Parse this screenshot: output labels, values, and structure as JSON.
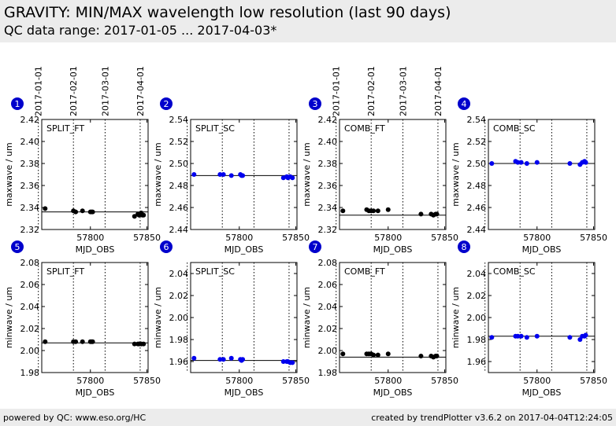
{
  "header": {
    "title": "GRAVITY: MIN/MAX wavelength low resolution (last 90 days)",
    "subtitle": "QC data range: 2017-01-05 ... 2017-04-03*"
  },
  "footer": {
    "left": "powered by QC: www.eso.org/HC",
    "right": "created by trendPlotter v3.6.2 on 2017-04-04T12:24:05"
  },
  "colors": {
    "black_series": "#000000",
    "blue_series": "#0000ee",
    "badge": "#0000cc",
    "header_bg": "#ececec"
  },
  "date_axis": {
    "labels": [
      "2017-01-01",
      "2017-02-01",
      "2017-03-01",
      "2017-04-01"
    ],
    "mjd": [
      57754,
      57785,
      57813,
      57844
    ]
  },
  "chart_data": [
    {
      "type": "scatter",
      "badge": "1",
      "label": "SPLIT_FT",
      "color": "black",
      "xlabel": "MJD_OBS",
      "ylabel": "maxwave / um",
      "xlim": [
        57757,
        57851
      ],
      "ylim": [
        2.32,
        2.42
      ],
      "yticks": [
        "2.32",
        "2.34",
        "2.36",
        "2.38",
        "2.40",
        "2.42"
      ],
      "xticks": [
        57800,
        57850
      ],
      "ref": 2.336,
      "show_dates": true,
      "points": [
        [
          57760,
          2.339
        ],
        [
          57785,
          2.337
        ],
        [
          57787,
          2.336
        ],
        [
          57793,
          2.337
        ],
        [
          57800,
          2.336
        ],
        [
          57801,
          2.336
        ],
        [
          57802,
          2.336
        ],
        [
          57839,
          2.332
        ],
        [
          57842,
          2.334
        ],
        [
          57843,
          2.333
        ],
        [
          57845,
          2.335
        ],
        [
          57846,
          2.333
        ],
        [
          57847,
          2.333
        ]
      ]
    },
    {
      "type": "scatter",
      "badge": "2",
      "label": "SPLIT_SC",
      "color": "blue",
      "xlabel": "MJD_OBS",
      "ylabel": "maxwave / um",
      "xlim": [
        57757,
        57851
      ],
      "ylim": [
        2.44,
        2.54
      ],
      "yticks": [
        "2.44",
        "2.46",
        "2.48",
        "2.50",
        "2.52",
        "2.54"
      ],
      "xticks": [
        57800,
        57850
      ],
      "ref": 2.489,
      "show_dates": false,
      "points": [
        [
          57760,
          2.49
        ],
        [
          57783,
          2.49
        ],
        [
          57786,
          2.49
        ],
        [
          57793,
          2.489
        ],
        [
          57801,
          2.49
        ],
        [
          57802,
          2.489
        ],
        [
          57803,
          2.489
        ],
        [
          57839,
          2.487
        ],
        [
          57842,
          2.488
        ],
        [
          57843,
          2.487
        ],
        [
          57845,
          2.488
        ],
        [
          57847,
          2.487
        ]
      ]
    },
    {
      "type": "scatter",
      "badge": "3",
      "label": "COMB_FT",
      "color": "black",
      "xlabel": "MJD_OBS",
      "ylabel": "maxwave / um",
      "xlim": [
        57757,
        57851
      ],
      "ylim": [
        2.32,
        2.42
      ],
      "yticks": [
        "2.32",
        "2.34",
        "2.36",
        "2.38",
        "2.40",
        "2.42"
      ],
      "xticks": [
        57800,
        57850
      ],
      "ref": 2.333,
      "show_dates": true,
      "points": [
        [
          57760,
          2.337
        ],
        [
          57781,
          2.338
        ],
        [
          57783,
          2.337
        ],
        [
          57785,
          2.337
        ],
        [
          57787,
          2.337
        ],
        [
          57791,
          2.337
        ],
        [
          57800,
          2.338
        ],
        [
          57829,
          2.334
        ],
        [
          57838,
          2.334
        ],
        [
          57840,
          2.333
        ],
        [
          57842,
          2.334
        ],
        [
          57843,
          2.334
        ]
      ]
    },
    {
      "type": "scatter",
      "badge": "4",
      "label": "COMB_SC",
      "color": "blue",
      "xlabel": "MJD_OBS",
      "ylabel": "maxwave / um",
      "xlim": [
        57757,
        57851
      ],
      "ylim": [
        2.44,
        2.54
      ],
      "yticks": [
        "2.44",
        "2.46",
        "2.48",
        "2.50",
        "2.52",
        "2.54"
      ],
      "xticks": [
        57800,
        57850
      ],
      "ref": 2.5,
      "show_dates": false,
      "points": [
        [
          57760,
          2.5
        ],
        [
          57781,
          2.502
        ],
        [
          57783,
          2.501
        ],
        [
          57786,
          2.501
        ],
        [
          57791,
          2.5
        ],
        [
          57800,
          2.501
        ],
        [
          57829,
          2.5
        ],
        [
          57838,
          2.499
        ],
        [
          57840,
          2.501
        ],
        [
          57842,
          2.502
        ],
        [
          57843,
          2.501
        ]
      ]
    },
    {
      "type": "scatter",
      "badge": "5",
      "label": "SPLIT_FT",
      "color": "black",
      "xlabel": "MJD_OBS",
      "ylabel": "minwave / um",
      "xlim": [
        57757,
        57851
      ],
      "ylim": [
        1.98,
        2.08
      ],
      "yticks": [
        "1.98",
        "2.00",
        "2.02",
        "2.04",
        "2.06",
        "2.08"
      ],
      "xticks": [
        57800,
        57850
      ],
      "ref": 2.007,
      "show_dates": false,
      "points": [
        [
          57760,
          2.008
        ],
        [
          57785,
          2.008
        ],
        [
          57787,
          2.008
        ],
        [
          57793,
          2.008
        ],
        [
          57800,
          2.008
        ],
        [
          57801,
          2.008
        ],
        [
          57802,
          2.008
        ],
        [
          57839,
          2.006
        ],
        [
          57842,
          2.006
        ],
        [
          57843,
          2.006
        ],
        [
          57845,
          2.006
        ],
        [
          57847,
          2.006
        ]
      ]
    },
    {
      "type": "scatter",
      "badge": "6",
      "label": "SPLIT_SC",
      "color": "blue",
      "xlabel": "MJD_OBS",
      "ylabel": "minwave / um",
      "xlim": [
        57757,
        57851
      ],
      "ylim": [
        1.95,
        2.05
      ],
      "yticks": [
        "1.96",
        "1.98",
        "2.00",
        "2.02",
        "2.04"
      ],
      "xticks": [
        57800,
        57850
      ],
      "ref": 1.961,
      "show_dates": false,
      "points": [
        [
          57760,
          1.963
        ],
        [
          57783,
          1.962
        ],
        [
          57786,
          1.962
        ],
        [
          57793,
          1.963
        ],
        [
          57801,
          1.962
        ],
        [
          57802,
          1.961
        ],
        [
          57803,
          1.962
        ],
        [
          57839,
          1.96
        ],
        [
          57842,
          1.96
        ],
        [
          57843,
          1.96
        ],
        [
          57845,
          1.959
        ],
        [
          57847,
          1.959
        ]
      ]
    },
    {
      "type": "scatter",
      "badge": "7",
      "label": "COMB_FT",
      "color": "black",
      "xlabel": "MJD_OBS",
      "ylabel": "minwave / um",
      "xlim": [
        57757,
        57851
      ],
      "ylim": [
        1.98,
        2.08
      ],
      "yticks": [
        "1.98",
        "2.00",
        "2.02",
        "2.04",
        "2.06",
        "2.08"
      ],
      "xticks": [
        57800,
        57850
      ],
      "ref": 1.994,
      "show_dates": false,
      "points": [
        [
          57760,
          1.997
        ],
        [
          57781,
          1.997
        ],
        [
          57783,
          1.997
        ],
        [
          57785,
          1.997
        ],
        [
          57787,
          1.996
        ],
        [
          57791,
          1.996
        ],
        [
          57800,
          1.997
        ],
        [
          57829,
          1.995
        ],
        [
          57838,
          1.995
        ],
        [
          57840,
          1.994
        ],
        [
          57842,
          1.995
        ],
        [
          57843,
          1.995
        ]
      ]
    },
    {
      "type": "scatter",
      "badge": "8",
      "label": "COMB_SC",
      "color": "blue",
      "xlabel": "MJD_OBS",
      "ylabel": "minwave / um",
      "xlim": [
        57757,
        57851
      ],
      "ylim": [
        1.95,
        2.05
      ],
      "yticks": [
        "1.96",
        "1.98",
        "2.00",
        "2.02",
        "2.04"
      ],
      "xticks": [
        57800,
        57850
      ],
      "ref": 1.983,
      "show_dates": false,
      "points": [
        [
          57760,
          1.982
        ],
        [
          57781,
          1.983
        ],
        [
          57783,
          1.983
        ],
        [
          57786,
          1.983
        ],
        [
          57791,
          1.982
        ],
        [
          57800,
          1.983
        ],
        [
          57829,
          1.982
        ],
        [
          57838,
          1.98
        ],
        [
          57840,
          1.983
        ],
        [
          57842,
          1.983
        ],
        [
          57843,
          1.984
        ]
      ]
    }
  ]
}
